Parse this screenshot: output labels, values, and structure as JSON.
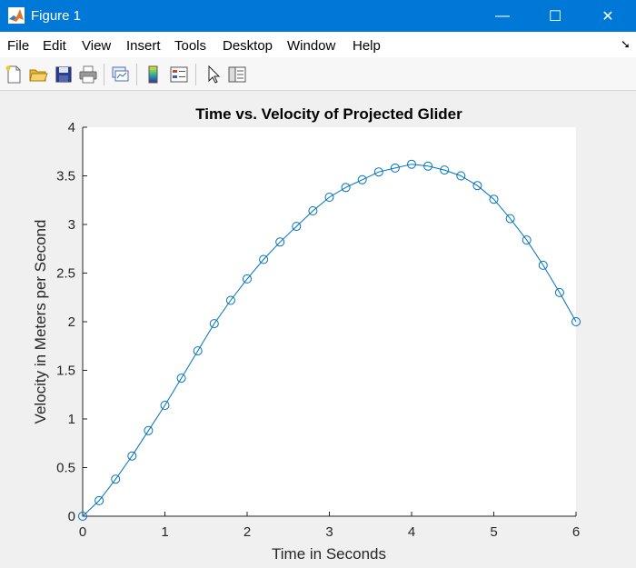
{
  "window": {
    "title": "Figure 1",
    "minimize_glyph": "—",
    "maximize_glyph": "☐",
    "close_glyph": "✕"
  },
  "menu": {
    "items": [
      "File",
      "Edit",
      "View",
      "Insert",
      "Tools",
      "Desktop",
      "Window",
      "Help"
    ],
    "dock_glyph": "➘"
  },
  "toolbar": {
    "icons": [
      "new-figure-icon",
      "open-file-icon",
      "save-icon",
      "print-icon",
      "link-plot-icon",
      "colorbar-icon",
      "legend-icon",
      "pointer-icon",
      "property-editor-icon"
    ]
  },
  "colors": {
    "titlebar": "#0078d7",
    "series": "#0072bd",
    "axes_bg": "#ffffff",
    "figure_bg": "#f0f0f0"
  },
  "chart_data": {
    "type": "line",
    "title": "Time vs. Velocity of Projected Glider",
    "xlabel": "Time in Seconds",
    "ylabel": "Velocity in Meters per Second",
    "xlim": [
      0,
      6
    ],
    "ylim": [
      0,
      4
    ],
    "xticks": [
      "0",
      "1",
      "2",
      "3",
      "4",
      "5",
      "6"
    ],
    "yticks": [
      "0",
      "0.5",
      "1",
      "1.5",
      "2",
      "2.5",
      "3",
      "3.5",
      "4"
    ],
    "grid": false,
    "marker": "circle",
    "x": [
      0,
      0.2,
      0.4,
      0.6,
      0.8,
      1.0,
      1.2,
      1.4,
      1.6,
      1.8,
      2.0,
      2.2,
      2.4,
      2.6,
      2.8,
      3.0,
      3.2,
      3.4,
      3.6,
      3.8,
      4.0,
      4.2,
      4.4,
      4.6,
      4.8,
      5.0,
      5.2,
      5.4,
      5.6,
      5.8,
      6.0
    ],
    "y": [
      0,
      0.16,
      0.38,
      0.62,
      0.88,
      1.14,
      1.42,
      1.7,
      1.98,
      2.22,
      2.44,
      2.64,
      2.82,
      2.98,
      3.14,
      3.28,
      3.38,
      3.46,
      3.54,
      3.58,
      3.62,
      3.6,
      3.56,
      3.5,
      3.4,
      3.26,
      3.06,
      2.84,
      2.58,
      2.3,
      2.0
    ]
  }
}
